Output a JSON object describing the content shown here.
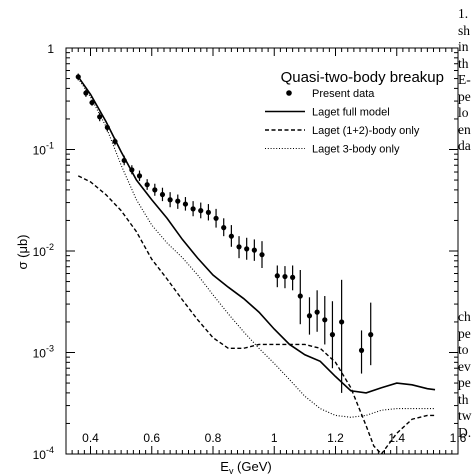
{
  "chart_data": {
    "type": "line",
    "title": "Quasi-two-body breakup",
    "xlabel_main": "E",
    "xlabel_sub": "γ",
    "xlabel_unit": " (GeV)",
    "ylabel": "σ (μb)",
    "xlim": [
      0.32,
      1.6
    ],
    "ylim": [
      0.0001,
      1
    ],
    "yscale": "log",
    "grid": false,
    "legend_placement": "top-right",
    "x_ticks": [
      "0.4",
      "0.6",
      "0.8",
      "1",
      "1.2",
      "1.4",
      "1.6"
    ],
    "x_tick_values": [
      0.4,
      0.6,
      0.8,
      1.0,
      1.2,
      1.4,
      1.6
    ],
    "y_ticks": [
      {
        "value": 1,
        "base": "1",
        "exp": ""
      },
      {
        "value": 0.1,
        "base": "10",
        "exp": "-1"
      },
      {
        "value": 0.01,
        "base": "10",
        "exp": "-2"
      },
      {
        "value": 0.001,
        "base": "10",
        "exp": "-3"
      },
      {
        "value": 0.0001,
        "base": "10",
        "exp": "-4"
      }
    ],
    "series": [
      {
        "name": "Present data",
        "style": "points",
        "points": [
          {
            "x": 0.36,
            "y": 0.52,
            "lo": 0.48,
            "hi": 0.56
          },
          {
            "x": 0.385,
            "y": 0.36,
            "lo": 0.33,
            "hi": 0.39
          },
          {
            "x": 0.405,
            "y": 0.29,
            "lo": 0.27,
            "hi": 0.31
          },
          {
            "x": 0.43,
            "y": 0.21,
            "lo": 0.19,
            "hi": 0.23
          },
          {
            "x": 0.455,
            "y": 0.165,
            "lo": 0.15,
            "hi": 0.18
          },
          {
            "x": 0.48,
            "y": 0.12,
            "lo": 0.11,
            "hi": 0.13
          },
          {
            "x": 0.51,
            "y": 0.078,
            "lo": 0.07,
            "hi": 0.087
          },
          {
            "x": 0.535,
            "y": 0.063,
            "lo": 0.057,
            "hi": 0.07
          },
          {
            "x": 0.56,
            "y": 0.055,
            "lo": 0.049,
            "hi": 0.062
          },
          {
            "x": 0.585,
            "y": 0.045,
            "lo": 0.04,
            "hi": 0.051
          },
          {
            "x": 0.61,
            "y": 0.04,
            "lo": 0.035,
            "hi": 0.046
          },
          {
            "x": 0.635,
            "y": 0.036,
            "lo": 0.031,
            "hi": 0.042
          },
          {
            "x": 0.66,
            "y": 0.032,
            "lo": 0.027,
            "hi": 0.038
          },
          {
            "x": 0.685,
            "y": 0.031,
            "lo": 0.026,
            "hi": 0.036
          },
          {
            "x": 0.71,
            "y": 0.029,
            "lo": 0.025,
            "hi": 0.034
          },
          {
            "x": 0.735,
            "y": 0.026,
            "lo": 0.022,
            "hi": 0.031
          },
          {
            "x": 0.76,
            "y": 0.025,
            "lo": 0.021,
            "hi": 0.03
          },
          {
            "x": 0.785,
            "y": 0.024,
            "lo": 0.02,
            "hi": 0.029
          },
          {
            "x": 0.81,
            "y": 0.021,
            "lo": 0.017,
            "hi": 0.026
          },
          {
            "x": 0.835,
            "y": 0.017,
            "lo": 0.014,
            "hi": 0.021
          },
          {
            "x": 0.86,
            "y": 0.014,
            "lo": 0.011,
            "hi": 0.018
          },
          {
            "x": 0.885,
            "y": 0.011,
            "lo": 0.0085,
            "hi": 0.014
          },
          {
            "x": 0.91,
            "y": 0.0105,
            "lo": 0.0082,
            "hi": 0.0135
          },
          {
            "x": 0.935,
            "y": 0.0102,
            "lo": 0.008,
            "hi": 0.013
          },
          {
            "x": 0.96,
            "y": 0.0092,
            "lo": 0.0068,
            "hi": 0.0125
          },
          {
            "x": 1.01,
            "y": 0.0057,
            "lo": 0.0044,
            "hi": 0.0072
          },
          {
            "x": 1.035,
            "y": 0.0056,
            "lo": 0.0043,
            "hi": 0.0071
          },
          {
            "x": 1.06,
            "y": 0.0055,
            "lo": 0.0041,
            "hi": 0.0072
          },
          {
            "x": 1.085,
            "y": 0.0036,
            "lo": 0.0019,
            "hi": 0.0065
          },
          {
            "x": 1.115,
            "y": 0.0023,
            "lo": 0.0015,
            "hi": 0.0035
          },
          {
            "x": 1.14,
            "y": 0.0025,
            "lo": 0.0016,
            "hi": 0.0041
          },
          {
            "x": 1.165,
            "y": 0.0021,
            "lo": 0.0012,
            "hi": 0.0036
          },
          {
            "x": 1.19,
            "y": 0.0015,
            "lo": 0.0007,
            "hi": 0.0032
          },
          {
            "x": 1.22,
            "y": 0.002,
            "lo": 0.0004,
            "hi": 0.0052
          },
          {
            "x": 1.285,
            "y": 0.00105,
            "lo": 0.00062,
            "hi": 0.00165
          },
          {
            "x": 1.315,
            "y": 0.0015,
            "lo": 0.00075,
            "hi": 0.0031
          }
        ]
      },
      {
        "name": "Laget full model",
        "style": "solid",
        "points": [
          [
            0.36,
            0.52
          ],
          [
            0.4,
            0.35
          ],
          [
            0.45,
            0.19
          ],
          [
            0.5,
            0.095
          ],
          [
            0.55,
            0.05
          ],
          [
            0.6,
            0.032
          ],
          [
            0.65,
            0.021
          ],
          [
            0.7,
            0.013
          ],
          [
            0.75,
            0.0085
          ],
          [
            0.8,
            0.0058
          ],
          [
            0.85,
            0.0044
          ],
          [
            0.9,
            0.0034
          ],
          [
            0.95,
            0.0025
          ],
          [
            1.0,
            0.0017
          ],
          [
            1.05,
            0.0012
          ],
          [
            1.1,
            0.00095
          ],
          [
            1.15,
            0.00082
          ],
          [
            1.2,
            0.00058
          ],
          [
            1.25,
            0.00042
          ],
          [
            1.3,
            0.0004
          ],
          [
            1.35,
            0.00045
          ],
          [
            1.4,
            0.0005
          ],
          [
            1.45,
            0.00048
          ],
          [
            1.5,
            0.00044
          ],
          [
            1.525,
            0.00043
          ]
        ]
      },
      {
        "name": "Laget (1+2)-body only",
        "style": "dashed",
        "points": [
          [
            0.36,
            0.055
          ],
          [
            0.4,
            0.048
          ],
          [
            0.45,
            0.036
          ],
          [
            0.5,
            0.025
          ],
          [
            0.55,
            0.0155
          ],
          [
            0.6,
            0.0083
          ],
          [
            0.65,
            0.0053
          ],
          [
            0.7,
            0.0033
          ],
          [
            0.75,
            0.0021
          ],
          [
            0.8,
            0.0014
          ],
          [
            0.85,
            0.0011
          ],
          [
            0.9,
            0.0011
          ],
          [
            0.95,
            0.0012
          ],
          [
            1.0,
            0.0012
          ],
          [
            1.05,
            0.0012
          ],
          [
            1.1,
            0.0012
          ],
          [
            1.15,
            0.0011
          ],
          [
            1.2,
            0.0008
          ],
          [
            1.25,
            0.00045
          ],
          [
            1.3,
            0.00019
          ],
          [
            1.325,
            0.00012
          ],
          [
            1.35,
            0.0001
          ],
          [
            1.4,
            0.00016
          ],
          [
            1.45,
            0.00022
          ],
          [
            1.5,
            0.00024
          ],
          [
            1.525,
            0.00024
          ]
        ]
      },
      {
        "name": "Laget 3-body only",
        "style": "dotted",
        "points": [
          [
            0.36,
            0.5
          ],
          [
            0.4,
            0.33
          ],
          [
            0.45,
            0.17
          ],
          [
            0.5,
            0.07
          ],
          [
            0.55,
            0.032
          ],
          [
            0.6,
            0.018
          ],
          [
            0.65,
            0.012
          ],
          [
            0.7,
            0.0086
          ],
          [
            0.75,
            0.0058
          ],
          [
            0.8,
            0.0037
          ],
          [
            0.85,
            0.0024
          ],
          [
            0.9,
            0.0016
          ],
          [
            0.95,
            0.0011
          ],
          [
            1.0,
            0.00078
          ],
          [
            1.05,
            0.00054
          ],
          [
            1.1,
            0.00037
          ],
          [
            1.15,
            0.00028
          ],
          [
            1.2,
            0.00024
          ],
          [
            1.25,
            0.00023
          ],
          [
            1.3,
            0.00024
          ],
          [
            1.35,
            0.00027
          ],
          [
            1.4,
            0.00028
          ],
          [
            1.45,
            0.00028
          ],
          [
            1.5,
            0.00028
          ],
          [
            1.525,
            0.00028
          ]
        ]
      }
    ]
  },
  "side_text_top": [
    "1.",
    "sh",
    "in",
    "th",
    "E-",
    "pe",
    "lo",
    "en",
    "da"
  ],
  "side_text_bottom": [
    "ch",
    "pe",
    "to",
    "ev",
    "pe",
    "th",
    "tw",
    "D."
  ]
}
